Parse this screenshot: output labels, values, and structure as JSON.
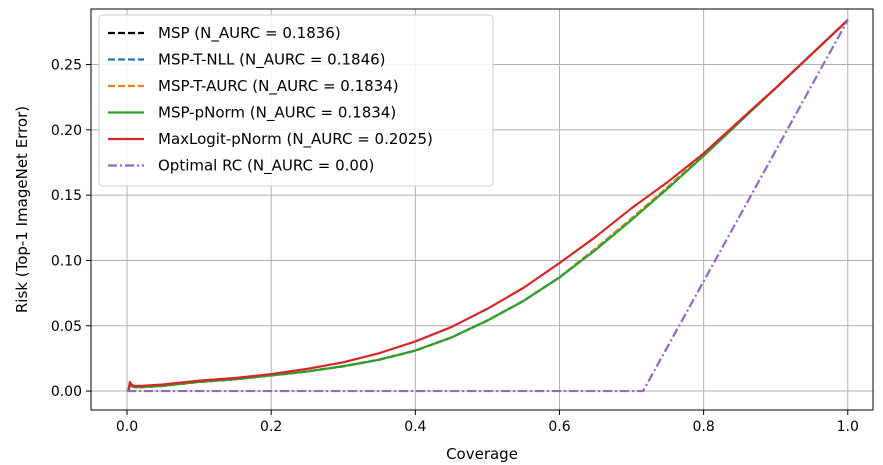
{
  "chart_data": {
    "type": "line",
    "xlabel": "Coverage",
    "ylabel": "Risk (Top-1 ImageNet Error)",
    "xlim": [
      -0.05,
      1.035
    ],
    "ylim": [
      -0.0145,
      0.2925
    ],
    "xticks": [
      0.0,
      0.2,
      0.4,
      0.6,
      0.8,
      1.0
    ],
    "xtick_labels": [
      "0.0",
      "0.2",
      "0.4",
      "0.6",
      "0.8",
      "1.0"
    ],
    "yticks": [
      0.0,
      0.05,
      0.1,
      0.15,
      0.2,
      0.25
    ],
    "ytick_labels": [
      "0.00",
      "0.05",
      "0.10",
      "0.15",
      "0.20",
      "0.25"
    ],
    "grid": true,
    "legend_position": "top-left",
    "series": [
      {
        "name": "MSP (N_AURC = 0.1836)",
        "color": "#000000",
        "dash": "dashed",
        "points": [
          [
            0.002,
            0.0
          ],
          [
            0.004,
            0.006
          ],
          [
            0.006,
            0.004
          ],
          [
            0.01,
            0.003
          ],
          [
            0.02,
            0.003
          ],
          [
            0.05,
            0.004
          ],
          [
            0.1,
            0.007
          ],
          [
            0.15,
            0.009
          ],
          [
            0.2,
            0.012
          ],
          [
            0.25,
            0.015
          ],
          [
            0.3,
            0.019
          ],
          [
            0.35,
            0.024
          ],
          [
            0.4,
            0.031
          ],
          [
            0.45,
            0.041
          ],
          [
            0.5,
            0.054
          ],
          [
            0.55,
            0.069
          ],
          [
            0.6,
            0.087
          ],
          [
            0.65,
            0.109
          ],
          [
            0.7,
            0.132
          ],
          [
            0.75,
            0.156
          ],
          [
            0.8,
            0.181
          ],
          [
            0.85,
            0.207
          ],
          [
            0.9,
            0.232
          ],
          [
            0.95,
            0.258
          ],
          [
            1.0,
            0.284
          ]
        ]
      },
      {
        "name": "MSP-T-NLL (N_AURC = 0.1846)",
        "color": "#1f77b4",
        "dash": "dashed",
        "points": [
          [
            0.002,
            0.0
          ],
          [
            0.004,
            0.006
          ],
          [
            0.006,
            0.004
          ],
          [
            0.01,
            0.003
          ],
          [
            0.02,
            0.003
          ],
          [
            0.05,
            0.004
          ],
          [
            0.1,
            0.007
          ],
          [
            0.15,
            0.009
          ],
          [
            0.2,
            0.012
          ],
          [
            0.25,
            0.015
          ],
          [
            0.3,
            0.019
          ],
          [
            0.35,
            0.024
          ],
          [
            0.4,
            0.031
          ],
          [
            0.45,
            0.041
          ],
          [
            0.5,
            0.054
          ],
          [
            0.55,
            0.069
          ],
          [
            0.6,
            0.087
          ],
          [
            0.65,
            0.109
          ],
          [
            0.7,
            0.132
          ],
          [
            0.75,
            0.156
          ],
          [
            0.8,
            0.181
          ],
          [
            0.85,
            0.207
          ],
          [
            0.9,
            0.232
          ],
          [
            0.95,
            0.258
          ],
          [
            1.0,
            0.284
          ]
        ]
      },
      {
        "name": "MSP-T-AURC (N_AURC = 0.1834)",
        "color": "#ff7f0e",
        "dash": "dashed",
        "points": [
          [
            0.002,
            0.0
          ],
          [
            0.004,
            0.006
          ],
          [
            0.006,
            0.004
          ],
          [
            0.01,
            0.003
          ],
          [
            0.02,
            0.003
          ],
          [
            0.05,
            0.004
          ],
          [
            0.1,
            0.007
          ],
          [
            0.15,
            0.009
          ],
          [
            0.2,
            0.012
          ],
          [
            0.25,
            0.015
          ],
          [
            0.3,
            0.019
          ],
          [
            0.35,
            0.024
          ],
          [
            0.4,
            0.031
          ],
          [
            0.45,
            0.041
          ],
          [
            0.5,
            0.054
          ],
          [
            0.55,
            0.069
          ],
          [
            0.6,
            0.087
          ],
          [
            0.65,
            0.109
          ],
          [
            0.7,
            0.132
          ],
          [
            0.75,
            0.156
          ],
          [
            0.8,
            0.181
          ],
          [
            0.85,
            0.207
          ],
          [
            0.9,
            0.232
          ],
          [
            0.95,
            0.258
          ],
          [
            1.0,
            0.284
          ]
        ]
      },
      {
        "name": "MSP-pNorm (N_AURC = 0.1834)",
        "color": "#2ca02c",
        "dash": "solid",
        "points": [
          [
            0.002,
            0.0
          ],
          [
            0.004,
            0.006
          ],
          [
            0.006,
            0.004
          ],
          [
            0.01,
            0.003
          ],
          [
            0.02,
            0.003
          ],
          [
            0.05,
            0.004
          ],
          [
            0.1,
            0.007
          ],
          [
            0.15,
            0.009
          ],
          [
            0.2,
            0.012
          ],
          [
            0.25,
            0.015
          ],
          [
            0.3,
            0.019
          ],
          [
            0.35,
            0.024
          ],
          [
            0.4,
            0.031
          ],
          [
            0.45,
            0.041
          ],
          [
            0.5,
            0.054
          ],
          [
            0.55,
            0.069
          ],
          [
            0.6,
            0.087
          ],
          [
            0.65,
            0.108
          ],
          [
            0.7,
            0.131
          ],
          [
            0.75,
            0.155
          ],
          [
            0.8,
            0.18
          ],
          [
            0.85,
            0.206
          ],
          [
            0.9,
            0.232
          ],
          [
            0.95,
            0.258
          ],
          [
            1.0,
            0.284
          ]
        ]
      },
      {
        "name": "MaxLogit-pNorm (N_AURC = 0.2025)",
        "color": "#d62728",
        "dash": "solid",
        "points": [
          [
            0.002,
            0.0
          ],
          [
            0.004,
            0.007
          ],
          [
            0.006,
            0.005
          ],
          [
            0.01,
            0.004
          ],
          [
            0.02,
            0.004
          ],
          [
            0.05,
            0.005
          ],
          [
            0.1,
            0.008
          ],
          [
            0.15,
            0.01
          ],
          [
            0.2,
            0.013
          ],
          [
            0.25,
            0.017
          ],
          [
            0.3,
            0.022
          ],
          [
            0.35,
            0.029
          ],
          [
            0.4,
            0.038
          ],
          [
            0.45,
            0.049
          ],
          [
            0.5,
            0.063
          ],
          [
            0.55,
            0.079
          ],
          [
            0.6,
            0.098
          ],
          [
            0.65,
            0.118
          ],
          [
            0.7,
            0.14
          ],
          [
            0.75,
            0.16
          ],
          [
            0.8,
            0.182
          ],
          [
            0.85,
            0.207
          ],
          [
            0.9,
            0.232
          ],
          [
            0.95,
            0.258
          ],
          [
            1.0,
            0.284
          ]
        ]
      },
      {
        "name": "Optimal RC (N_AURC = 0.00)",
        "color": "#9467bd",
        "dash": "dashdot",
        "points": [
          [
            0.0,
            0.0
          ],
          [
            0.716,
            0.0
          ],
          [
            1.0,
            0.284
          ]
        ]
      }
    ]
  }
}
